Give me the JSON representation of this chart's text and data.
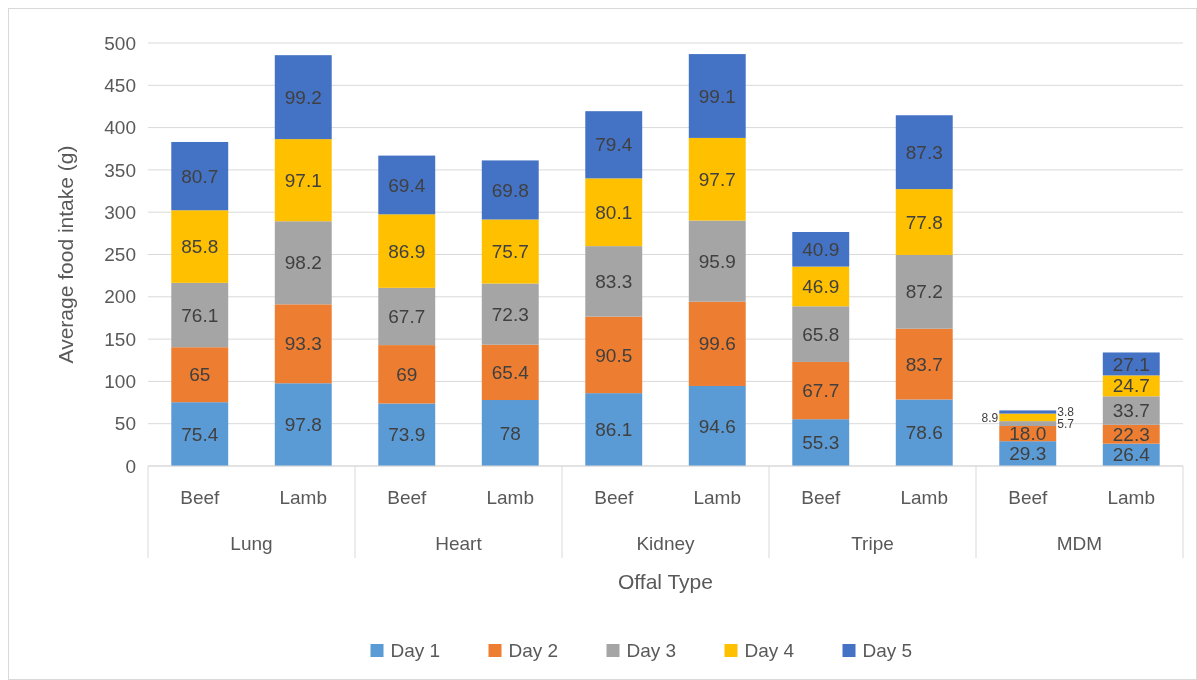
{
  "chart_data": {
    "type": "bar",
    "stacked": true,
    "xlabel": "Offal Type",
    "ylabel": "Average food intake (g)",
    "categories": [
      "Beef",
      "Lamb",
      "Beef",
      "Lamb",
      "Beef",
      "Lamb",
      "Beef",
      "Lamb",
      "Beef",
      "Lamb"
    ],
    "annotations": [
      "Lung",
      "Heart",
      "Kidney",
      "Tripe",
      "MDM"
    ],
    "ylim": [
      0,
      500
    ],
    "yticks": [
      0,
      50,
      100,
      150,
      200,
      250,
      300,
      350,
      400,
      450,
      500
    ],
    "grid": "y",
    "legend": "bottom",
    "series": [
      {
        "name": "Day 1",
        "color": "#5b9bd5",
        "values": [
          75.4,
          97.8,
          73.9,
          78,
          86.1,
          94.6,
          55.3,
          78.6,
          29.3,
          26.4
        ],
        "value_labels": [
          "75.4",
          "97.8",
          "73.9",
          "78",
          "86.1",
          "94.6",
          "55.3",
          "78.6",
          "29.3",
          "26.4"
        ]
      },
      {
        "name": "Day 2",
        "color": "#ed7d31",
        "values": [
          65,
          93.3,
          69,
          65.4,
          90.5,
          99.6,
          67.7,
          83.7,
          18.0,
          22.3
        ],
        "value_labels": [
          "65",
          "93.3",
          "69",
          "65.4",
          "90.5",
          "99.6",
          "67.7",
          "83.7",
          "18.0",
          "22.3"
        ]
      },
      {
        "name": "Day 3",
        "color": "#a5a5a5",
        "values": [
          76.1,
          98.2,
          67.7,
          72.3,
          83.3,
          95.9,
          65.8,
          87.2,
          5.7,
          33.7
        ],
        "value_labels": [
          "76.1",
          "98.2",
          "67.7",
          "72.3",
          "83.3",
          "95.9",
          "65.8",
          "87.2",
          "5.7",
          "33.7"
        ]
      },
      {
        "name": "Day 4",
        "color": "#ffc000",
        "values": [
          85.8,
          97.1,
          86.9,
          75.7,
          80.1,
          97.7,
          46.9,
          77.8,
          8.9,
          24.7
        ],
        "value_labels": [
          "85.8",
          "97.1",
          "86.9",
          "75.7",
          "80.1",
          "97.7",
          "46.9",
          "77.8",
          "8.9",
          "24.7"
        ]
      },
      {
        "name": "Day 5",
        "color": "#4472c4",
        "values": [
          80.7,
          99.2,
          69.4,
          69.8,
          79.4,
          99.1,
          40.9,
          87.3,
          3.8,
          27.1
        ],
        "value_labels": [
          "80.7",
          "99.2",
          "69.4",
          "69.8",
          "79.4",
          "99.1",
          "40.9",
          "87.3",
          "3.8",
          "27.1"
        ]
      }
    ]
  }
}
